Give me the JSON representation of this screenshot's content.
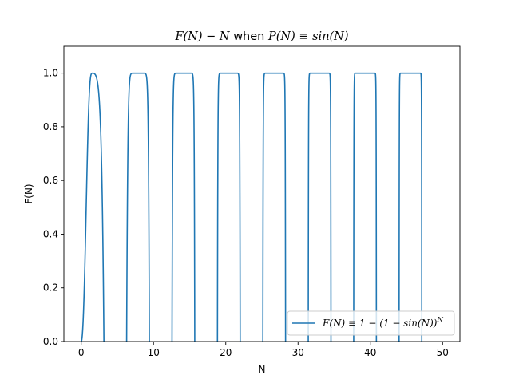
{
  "chart_data": {
    "type": "line",
    "title": {
      "pre": "F(N) − N",
      "mid": " when ",
      "post": "P(N) ≡ sin(N)"
    },
    "xlabel": "N",
    "ylabel": "F(N)",
    "xlim": [
      -2.4,
      52.4
    ],
    "ylim": [
      0.0,
      1.1
    ],
    "xticks": [
      0,
      10,
      20,
      30,
      40,
      50
    ],
    "yticks": [
      0.0,
      0.2,
      0.4,
      0.6,
      0.8,
      1.0
    ],
    "xtick_labels": [
      "0",
      "10",
      "20",
      "30",
      "40",
      "50"
    ],
    "ytick_labels": [
      "0.0",
      "0.2",
      "0.4",
      "0.6",
      "0.8",
      "1.0"
    ],
    "legend_position": "lower-right",
    "series": [
      {
        "name": "F(N) ≡ 1 − (1 − sin(N))",
        "name_superscript": "N",
        "color": "#1f77b4",
        "x_range": [
          0,
          47.3
        ],
        "description_formula": "1 - (1 - sin(N))^N"
      }
    ]
  }
}
